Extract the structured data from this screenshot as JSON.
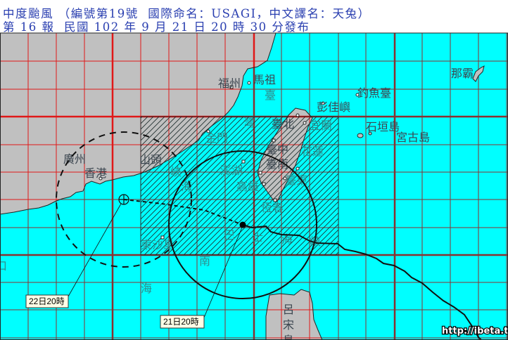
{
  "header": {
    "line1": "中度颱風 （編號第19號  國際命名：USAGI，中文譯名：天兔）",
    "line2": "第 16 報  民國 102 年 9 月 21 日 20 時 30 分發布"
  },
  "places": [
    "福州",
    "馬祖",
    "臺",
    "灣",
    "海",
    "峽",
    "金門",
    "澎湖",
    "高雄",
    "恆春",
    "臺北",
    "宜蘭",
    "臺中",
    "花蓮",
    "臺南",
    "臺東",
    "彭佳嶼",
    "釣魚臺",
    "石垣島",
    "宮古島",
    "那霸",
    "廣州",
    "香港",
    "山頭",
    "東沙島",
    "南",
    "海",
    "巴",
    "士",
    "海",
    "峽",
    "呂",
    "宋",
    "島",
    "口"
  ],
  "time_labels": {
    "forecast": "22日20時",
    "current": "21日20時"
  },
  "watermark": "http://ibeta.tw",
  "legend_colors": {
    "sea": "#00ffff",
    "land": "#c0c0c0",
    "header_text": "#2a3fb0",
    "warning_area_hatch": "#1a2a2a"
  }
}
